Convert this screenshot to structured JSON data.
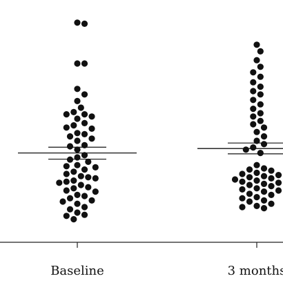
{
  "chart_data": {
    "type": "scatter",
    "subtype": "beeswarm-dot-plot",
    "title": "",
    "xlabel": "",
    "ylabel": "",
    "y_axis_visible": false,
    "ylim": [
      0,
      100
    ],
    "grid": false,
    "legend": "none",
    "colors": {
      "points": "#111111",
      "axis": "#222222",
      "lines": "#111111"
    },
    "categories": [
      "Baseline",
      "3 months"
    ],
    "groups": [
      {
        "name": "Baseline",
        "mean": 37.0,
        "sem_upper": 39.6,
        "sem_lower": 34.2,
        "values": [
          96.0,
          95.5,
          77.5,
          77.5,
          66.0,
          63.5,
          60.5,
          57.5,
          55.5,
          54.5,
          54.5,
          53.5,
          52.5,
          50.5,
          49.5,
          48.5,
          48.0,
          46.0,
          45.5,
          44.5,
          43.5,
          42.5,
          40.5,
          40.0,
          38.5,
          36.0,
          35.0,
          34.0,
          33.0,
          31.5,
          31.0,
          30.5,
          29.5,
          28.5,
          27.5,
          26.5,
          26.0,
          25.5,
          24.5,
          24.0,
          23.5,
          22.5,
          21.5,
          21.0,
          20.0,
          19.5,
          18.0,
          17.5,
          16.5,
          15.5,
          15.0,
          14.0,
          12.5,
          11.5,
          10.0,
          9.0,
          8.5,
          7.0
        ]
      },
      {
        "name": "3 months",
        "mean": 39.0,
        "sem_upper": 41.5,
        "sem_lower": 36.6,
        "values": [
          86.0,
          83.0,
          79.0,
          76.0,
          73.5,
          71.5,
          69.0,
          67.0,
          65.0,
          63.5,
          61.0,
          59.0,
          57.0,
          55.0,
          53.5,
          51.5,
          50.0,
          48.5,
          46.5,
          44.5,
          42.5,
          41.0,
          39.5,
          38.5,
          37.0,
          31.5,
          30.0,
          29.5,
          29.0,
          28.0,
          27.5,
          27.0,
          26.5,
          26.0,
          25.5,
          25.0,
          24.5,
          24.0,
          23.5,
          23.0,
          22.5,
          22.0,
          21.0,
          20.5,
          20.0,
          19.5,
          18.5,
          18.0,
          17.0,
          16.5,
          15.5,
          15.0,
          14.0,
          13.0,
          12.5,
          12.0
        ]
      }
    ]
  }
}
